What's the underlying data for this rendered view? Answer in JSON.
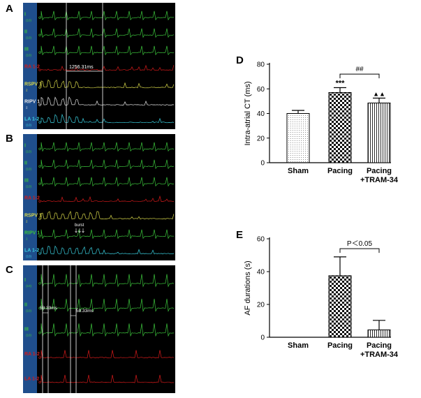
{
  "panel_letters": [
    "A",
    "B",
    "C",
    "D",
    "E"
  ],
  "colors": {
    "green": "#3cc43c",
    "red": "#d41a1a",
    "yellow": "#d8d84a",
    "white": "#e8e8e8",
    "cyan": "#3ad0e0",
    "side": "#1f4e8c"
  },
  "ecg": {
    "A": {
      "leads": [
        {
          "label": "I",
          "sub": "(10)",
          "color": "green"
        },
        {
          "label": "II",
          "sub": "(10)",
          "color": "green"
        },
        {
          "label": "III",
          "sub": "(10)",
          "color": "green"
        },
        {
          "label": "RA 1-2",
          "sub": "",
          "color": "red"
        },
        {
          "label": "RSPV 1",
          "sub": "2",
          "color": "yellow"
        },
        {
          "label": "RIPV 1",
          "sub": "2",
          "color": "white"
        },
        {
          "label": "LA 1-2",
          "sub": "(10)",
          "color": "cyan"
        }
      ],
      "measurement": "1256.31ms"
    },
    "B": {
      "leads": [
        {
          "label": "I",
          "sub": "(10)",
          "color": "green"
        },
        {
          "label": "II",
          "sub": "(10)",
          "color": "green"
        },
        {
          "label": "III",
          "sub": "(10)",
          "color": "green"
        },
        {
          "label": "RA 1-2",
          "sub": "",
          "color": "red"
        },
        {
          "label": "RSPV 1",
          "sub": "2",
          "color": "yellow"
        },
        {
          "label": "RIPV 1",
          "sub": "2",
          "color": "green"
        },
        {
          "label": "LA 1-2",
          "sub": "(10)",
          "color": "cyan"
        }
      ],
      "annotation": "burst"
    },
    "C": {
      "leads": [
        {
          "label": "I",
          "sub": "(10)",
          "color": "green"
        },
        {
          "label": "II",
          "sub": "(10)",
          "color": "green"
        },
        {
          "label": "III",
          "sub": "(10)",
          "color": "green"
        },
        {
          "label": "RA 1-2",
          "sub": "",
          "color": "red"
        },
        {
          "label": "LA 1-2",
          "sub": "",
          "color": "red"
        }
      ],
      "measurements": [
        "58.33ms",
        "58.33ms"
      ]
    }
  },
  "chart_data": [
    {
      "panel": "D",
      "type": "bar",
      "title": "",
      "xlabel": "",
      "ylabel": "Intra-atrial CT  (ms)",
      "ylim": [
        0,
        80
      ],
      "yticks": [
        0,
        20,
        40,
        60,
        80
      ],
      "categories": [
        "Sham",
        "Pacing",
        "Pacing"
      ],
      "category_sublabels": [
        "",
        "",
        "+TRAM-34"
      ],
      "values": [
        40,
        57,
        48.5
      ],
      "errors": [
        2.5,
        4,
        4
      ],
      "patterns": [
        "dots",
        "checker",
        "vlines"
      ],
      "annotations": {
        "pacing": "***",
        "tram": "▲▲",
        "bracket": "##"
      }
    },
    {
      "panel": "E",
      "type": "bar",
      "title": "",
      "xlabel": "",
      "ylabel": "AF durations (s)",
      "ylim": [
        0,
        60
      ],
      "yticks": [
        0,
        20,
        40,
        60
      ],
      "categories": [
        "Sham",
        "Pacing",
        "Pacing"
      ],
      "category_sublabels": [
        "",
        "",
        "+TRAM-34"
      ],
      "values": [
        0,
        37.5,
        4.5
      ],
      "errors": [
        0,
        11.5,
        5.8
      ],
      "patterns": [
        "none",
        "checker",
        "vlines"
      ],
      "annotations": {
        "bracket": "P＜0.05"
      }
    }
  ]
}
